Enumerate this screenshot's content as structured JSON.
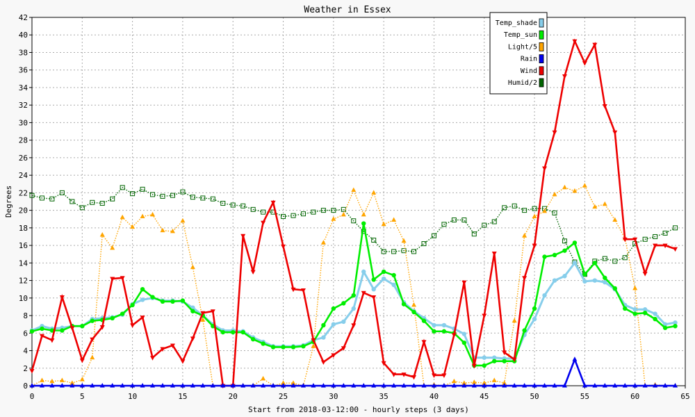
{
  "chart_data": {
    "type": "line",
    "title": "Weather in Essex",
    "xlabel": "Start from 2018-03-12:00 - hourly steps (3 days)",
    "ylabel": "Degrees",
    "xlim": [
      0,
      65
    ],
    "ylim": [
      0,
      42
    ],
    "x_ticks": [
      0,
      5,
      10,
      15,
      20,
      25,
      30,
      35,
      40,
      45,
      50,
      55,
      60,
      65
    ],
    "y_ticks": [
      0,
      2,
      4,
      6,
      8,
      10,
      12,
      14,
      16,
      18,
      20,
      22,
      24,
      26,
      28,
      30,
      32,
      34,
      36,
      38,
      40,
      42
    ],
    "grid": true,
    "legend_position": "top-right",
    "series": [
      {
        "name": "Temp_shade",
        "color": "#87ceeb",
        "marker": "circle",
        "values": [
          6.3,
          6.8,
          6.5,
          6.6,
          6.8,
          6.8,
          7.6,
          7.7,
          7.8,
          8.1,
          9.3,
          9.8,
          10.0,
          9.7,
          9.7,
          9.6,
          8.9,
          8.0,
          7.0,
          6.3,
          6.3,
          6.2,
          5.5,
          5.0,
          4.5,
          4.5,
          4.5,
          4.6,
          5.2,
          5.5,
          7.0,
          7.3,
          8.8,
          13.0,
          11.0,
          12.2,
          11.5,
          9.5,
          8.5,
          7.7,
          6.9,
          6.9,
          6.5,
          5.9,
          3.2,
          3.2,
          3.2,
          3.1,
          3.1,
          5.8,
          7.6,
          10.3,
          12.0,
          12.5,
          14.0,
          11.9,
          12.0,
          11.8,
          11.0,
          9.2,
          8.7,
          8.7,
          8.2,
          7.0,
          7.2
        ]
      },
      {
        "name": "Temp_sun",
        "color": "#00ee00",
        "marker": "circle",
        "values": [
          6.2,
          6.5,
          6.3,
          6.3,
          6.8,
          6.8,
          7.4,
          7.5,
          7.7,
          8.2,
          9.2,
          11.0,
          10.1,
          9.6,
          9.6,
          9.7,
          8.5,
          8.0,
          6.8,
          6.1,
          6.1,
          6.1,
          5.3,
          4.8,
          4.4,
          4.4,
          4.4,
          4.5,
          5.0,
          6.9,
          8.8,
          9.4,
          10.3,
          18.5,
          12.1,
          13.0,
          12.6,
          9.3,
          8.4,
          7.4,
          6.2,
          6.2,
          6.0,
          4.9,
          2.3,
          2.3,
          2.8,
          2.8,
          2.8,
          6.3,
          8.8,
          14.7,
          14.9,
          15.4,
          16.3,
          12.7,
          14.0,
          12.3,
          11.1,
          8.8,
          8.2,
          8.3,
          7.6,
          6.6,
          6.8
        ]
      },
      {
        "name": "Light/5",
        "color": "#ffa500",
        "marker": "triangle-up",
        "values": [
          0,
          0.6,
          0.5,
          0.6,
          0.3,
          0.7,
          3.2,
          17.2,
          15.7,
          19.2,
          18.1,
          19.3,
          19.5,
          17.7,
          17.6,
          18.8,
          13.5,
          7.5,
          0,
          0,
          0,
          0,
          0,
          0.8,
          0,
          0.3,
          0.3,
          0,
          4.5,
          16.3,
          19.0,
          19.5,
          22.3,
          19.5,
          22.0,
          18.4,
          18.9,
          16.5,
          9.2,
          0,
          0.1,
          0,
          0.5,
          0.3,
          0.4,
          0.3,
          0.6,
          0.3,
          7.4,
          17.1,
          19.3,
          19.9,
          21.8,
          22.6,
          22.2,
          22.8,
          20.4,
          20.7,
          18.9,
          16.8,
          11.1,
          0,
          0.1,
          0,
          0
        ]
      },
      {
        "name": "Rain",
        "color": "#0000ee",
        "marker": "triangle-up",
        "values": [
          0,
          0,
          0,
          0,
          0,
          0,
          0,
          0,
          0,
          0,
          0,
          0,
          0,
          0,
          0,
          0,
          0,
          0,
          0,
          0,
          0,
          0,
          0,
          0,
          0,
          0,
          0,
          0,
          0,
          0,
          0,
          0,
          0,
          0,
          0,
          0,
          0,
          0,
          0,
          0,
          0,
          0,
          0,
          0,
          0,
          0,
          0,
          0,
          0,
          0,
          0,
          0,
          0,
          0,
          3.0,
          0,
          0,
          0,
          0,
          0,
          0,
          0,
          0,
          0,
          0
        ]
      },
      {
        "name": "Wind",
        "color": "#ee0000",
        "marker": "triangle-down",
        "values": [
          1.7,
          5.7,
          5.2,
          10.1,
          6.6,
          2.9,
          5.3,
          6.7,
          12.2,
          12.3,
          6.9,
          7.8,
          3.2,
          4.2,
          4.6,
          2.8,
          5.4,
          8.3,
          8.5,
          0,
          0,
          17.1,
          13.0,
          18.6,
          20.9,
          15.9,
          11.0,
          10.9,
          5.2,
          2.7,
          3.5,
          4.3,
          6.9,
          10.6,
          10.1,
          2.6,
          1.3,
          1.3,
          1.0,
          5.0,
          1.2,
          1.2,
          5.8,
          11.8,
          2.3,
          8.0,
          15.1,
          3.8,
          3.0,
          12.3,
          16.0,
          24.8,
          28.9,
          35.3,
          39.3,
          36.8,
          38.9,
          31.9,
          28.9,
          16.7,
          16.7,
          12.8,
          16.0,
          16.0,
          15.6
        ]
      },
      {
        "name": "Humid/2",
        "color": "#006400",
        "marker": "square",
        "values": [
          21.7,
          21.4,
          21.3,
          22.0,
          21.0,
          20.3,
          20.9,
          20.8,
          21.3,
          22.6,
          21.9,
          22.4,
          21.8,
          21.6,
          21.7,
          22.1,
          21.5,
          21.4,
          21.3,
          20.8,
          20.6,
          20.5,
          20.1,
          19.8,
          19.8,
          19.3,
          19.4,
          19.6,
          19.8,
          20.0,
          20.0,
          20.1,
          18.8,
          17.6,
          16.6,
          15.3,
          15.3,
          15.4,
          15.3,
          16.2,
          17.1,
          18.4,
          18.9,
          18.9,
          17.3,
          18.3,
          18.7,
          20.3,
          20.5,
          20.0,
          20.2,
          20.2,
          19.7,
          16.5,
          14.1,
          12.7,
          14.2,
          14.5,
          14.2,
          14.6,
          16.2,
          16.7,
          17.0,
          17.4,
          18.0
        ]
      }
    ]
  }
}
